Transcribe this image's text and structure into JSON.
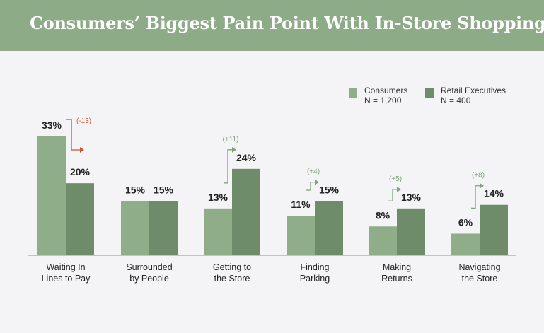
{
  "title": "Consumers’ Biggest Pain Point With In-Store Shopping",
  "colors": {
    "banner": "#8eab88",
    "background": "#f4f4f6",
    "consumers": "#8fad89",
    "executives": "#6f8c6a",
    "negative_delta": "#c8553d",
    "positive_delta": "#7fa27a",
    "text": "#222222"
  },
  "legend": [
    {
      "label": "Consumers",
      "sub": "N = 1,200"
    },
    {
      "label": "Retail Executives",
      "sub": "N = 400"
    }
  ],
  "chart_data": {
    "type": "bar",
    "title": "Consumers’ Biggest Pain Point With In-Store Shopping",
    "categories": [
      [
        "Waiting In",
        "Lines to Pay"
      ],
      [
        "Surrounded",
        "by People"
      ],
      [
        "Getting to",
        "the Store"
      ],
      [
        "Finding",
        "Parking"
      ],
      [
        "Making",
        "Returns"
      ],
      [
        "Navigating",
        "the Store"
      ]
    ],
    "series": [
      {
        "name": "Consumers",
        "values": [
          33,
          15,
          13,
          11,
          8,
          6
        ],
        "labels": [
          "33%",
          "15%",
          "13%",
          "11%",
          "8%",
          "6%"
        ]
      },
      {
        "name": "Retail Executives",
        "values": [
          20,
          15,
          24,
          15,
          13,
          14
        ],
        "labels": [
          "20%",
          "15%",
          "24%",
          "15%",
          "13%",
          "14%"
        ]
      }
    ],
    "deltas": [
      "(-13)",
      null,
      "(+11)",
      "(+4)",
      "(+5)",
      "(+8)"
    ],
    "ylim": [
      0,
      33
    ],
    "legend_position": "top-right",
    "grid": false
  }
}
